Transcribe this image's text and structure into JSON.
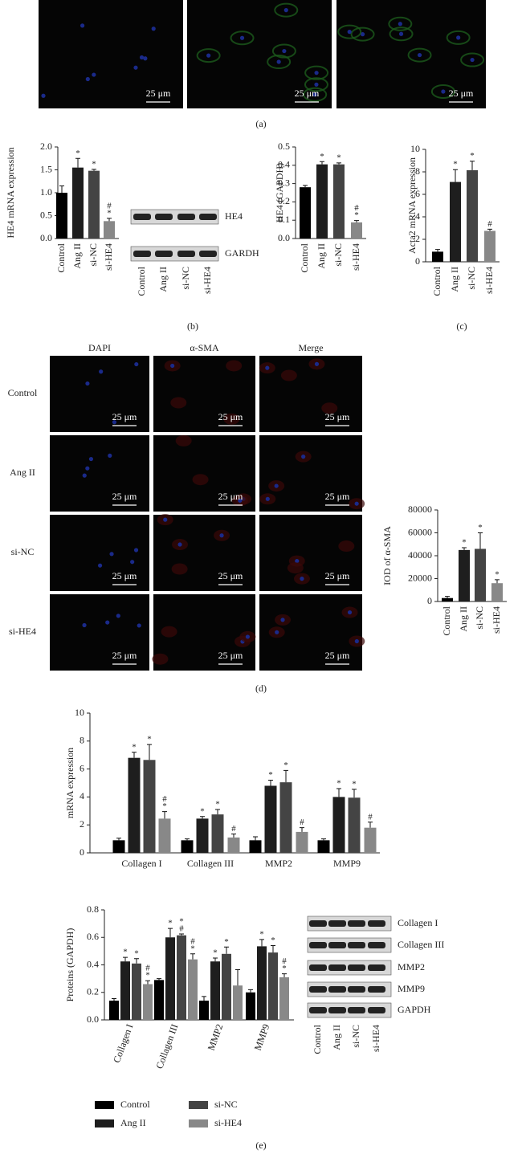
{
  "figure": {
    "panel_labels": [
      "(a)",
      "(b)",
      "(c)",
      "(d)",
      "(e)"
    ],
    "scale_bar": "25 μm",
    "image_columns": [
      "DAPI",
      "α-SMA",
      "Merge"
    ],
    "image_rows": [
      "Control",
      "Ang II",
      "si-NC",
      "si-HE4"
    ]
  },
  "blots": [
    {
      "bands": [
        "HE4",
        "GARDH"
      ],
      "categories": [
        "Control",
        "Ang II",
        "si-NC",
        "si-HE4"
      ]
    },
    {
      "bands": [
        "Collagen I",
        "Collagen III",
        "MMP2",
        "MMP9",
        "GAPDH"
      ],
      "categories": [
        "Control",
        "Ang II",
        "si-NC",
        "si-HE4"
      ]
    }
  ],
  "chart_data": [
    {
      "type": "bar",
      "y_label": "HE4 mRNA expression",
      "categories": [
        "Control",
        "Ang II",
        "si-NC",
        "si-HE4"
      ],
      "values": [
        1.0,
        1.55,
        1.48,
        0.38
      ],
      "errors": [
        0.15,
        0.2,
        0.03,
        0.06
      ],
      "colors": [
        "#000000",
        "#1e1e1e",
        "#444444",
        "#888888"
      ],
      "annotations": [
        [],
        [
          "*"
        ],
        [
          "*"
        ],
        [
          "#",
          "*"
        ]
      ],
      "ylim": [
        0,
        2
      ],
      "yticks": [
        {
          "value": 0,
          "label": "0.0"
        },
        0.5,
        {
          "value": 1,
          "label": "1.0"
        },
        1.5,
        {
          "value": 2,
          "label": "2.0"
        }
      ]
    },
    {
      "type": "bar",
      "y_label": "HE4 (GAPDH)",
      "categories": [
        "Control",
        "Ang II",
        "si-NC",
        "si-HE4"
      ],
      "values": [
        0.28,
        0.405,
        0.405,
        0.088
      ],
      "errors": [
        0.01,
        0.015,
        0.008,
        0.01
      ],
      "colors": [
        "#000000",
        "#1e1e1e",
        "#444444",
        "#888888"
      ],
      "annotations": [
        [],
        [
          "*"
        ],
        [
          "*"
        ],
        [
          "#",
          "*"
        ]
      ],
      "ylim": [
        0,
        0.5
      ],
      "yticks": [
        {
          "value": 0,
          "label": "0.0"
        },
        0.1,
        0.2,
        0.3,
        0.4,
        0.5
      ]
    },
    {
      "type": "bar",
      "y_label": "Acta2 mRNA expression",
      "categories": [
        "Control",
        "Ang II",
        "si-NC",
        "si-HE4"
      ],
      "values": [
        0.9,
        7.1,
        8.15,
        2.75
      ],
      "errors": [
        0.2,
        1.1,
        0.8,
        0.15
      ],
      "colors": [
        "#000000",
        "#1e1e1e",
        "#444444",
        "#888888"
      ],
      "annotations": [
        [],
        [
          "*"
        ],
        [
          "*"
        ],
        [
          "#"
        ]
      ],
      "ylim": [
        0,
        10
      ],
      "yticks": [
        0,
        2,
        4,
        6,
        8,
        10
      ]
    },
    {
      "type": "bar",
      "y_label": "IOD of α-SMA",
      "categories": [
        "Control",
        "Ang II",
        "si-NC",
        "si-HE4"
      ],
      "values": [
        3000,
        45000,
        46000,
        16000
      ],
      "errors": [
        1500,
        2000,
        14000,
        3000
      ],
      "colors": [
        "#000000",
        "#1e1e1e",
        "#444444",
        "#888888"
      ],
      "annotations": [
        [],
        [
          "*"
        ],
        [
          "*"
        ],
        [
          "*"
        ]
      ],
      "ylim": [
        0,
        80000
      ],
      "yticks": [
        0,
        20000,
        40000,
        60000,
        80000
      ]
    },
    {
      "type": "grouped_bar",
      "y_label": "mRNA expression",
      "categories": [
        "Collagen I",
        "Collagen III",
        "MMP2",
        "MMP9"
      ],
      "series": [
        {
          "name": "Control",
          "color": "#000000",
          "values": [
            0.9,
            0.9,
            0.9,
            0.9
          ],
          "errors": [
            0.15,
            0.1,
            0.25,
            0.1
          ],
          "annotations": [
            [],
            [],
            [],
            []
          ]
        },
        {
          "name": "Ang II",
          "color": "#1e1e1e",
          "values": [
            6.8,
            2.45,
            4.8,
            4.0
          ],
          "errors": [
            0.4,
            0.15,
            0.4,
            0.6
          ],
          "annotations": [
            [
              "*"
            ],
            [
              "*"
            ],
            [
              "*"
            ],
            [
              "*"
            ]
          ]
        },
        {
          "name": "si-NC",
          "color": "#444444",
          "values": [
            6.65,
            2.75,
            5.05,
            3.95
          ],
          "errors": [
            1.1,
            0.35,
            0.85,
            0.6
          ],
          "annotations": [
            [
              "*"
            ],
            [
              "*"
            ],
            [
              "*"
            ],
            [
              "*"
            ]
          ]
        },
        {
          "name": "si-HE4",
          "color": "#888888",
          "values": [
            2.45,
            1.1,
            1.5,
            1.8
          ],
          "errors": [
            0.5,
            0.25,
            0.3,
            0.4
          ],
          "annotations": [
            [
              "#",
              "*"
            ],
            [
              "#"
            ],
            [
              "#"
            ],
            [
              "#"
            ]
          ]
        }
      ],
      "ylim": [
        0,
        10
      ],
      "yticks": [
        0,
        2,
        4,
        6,
        8,
        10
      ]
    },
    {
      "type": "grouped_bar",
      "y_label": "Proteins (GAPDH)",
      "categories": [
        "Collagen I",
        "Collagen III",
        "MMP2",
        "MMP9"
      ],
      "series": [
        {
          "name": "Control",
          "color": "#000000",
          "values": [
            0.14,
            0.29,
            0.14,
            0.2
          ],
          "errors": [
            0.015,
            0.01,
            0.03,
            0.02
          ],
          "annotations": [
            [],
            [],
            [],
            []
          ]
        },
        {
          "name": "Ang II",
          "color": "#1e1e1e",
          "values": [
            0.425,
            0.6,
            0.425,
            0.535
          ],
          "errors": [
            0.03,
            0.065,
            0.025,
            0.05
          ],
          "annotations": [
            [
              "*"
            ],
            [
              "*"
            ],
            [
              "*"
            ],
            [
              "*"
            ]
          ]
        },
        {
          "name": "si-NC",
          "color": "#444444",
          "values": [
            0.41,
            0.615,
            0.48,
            0.49
          ],
          "errors": [
            0.035,
            0.01,
            0.05,
            0.05
          ],
          "annotations": [
            [
              "*"
            ],
            [
              "*",
              "#"
            ],
            [
              "*"
            ],
            [
              "*"
            ]
          ]
        },
        {
          "name": "si-HE4",
          "color": "#888888",
          "values": [
            0.26,
            0.44,
            0.25,
            0.31
          ],
          "errors": [
            0.025,
            0.04,
            0.115,
            0.025
          ],
          "annotations": [
            [
              "#",
              "*"
            ],
            [
              "#",
              "*"
            ],
            [],
            [
              "#",
              "*"
            ]
          ]
        }
      ],
      "ylim": [
        0,
        0.8
      ],
      "yticks": [
        {
          "value": 0,
          "label": "0.0"
        },
        0.2,
        0.4,
        0.6,
        0.8
      ]
    }
  ]
}
